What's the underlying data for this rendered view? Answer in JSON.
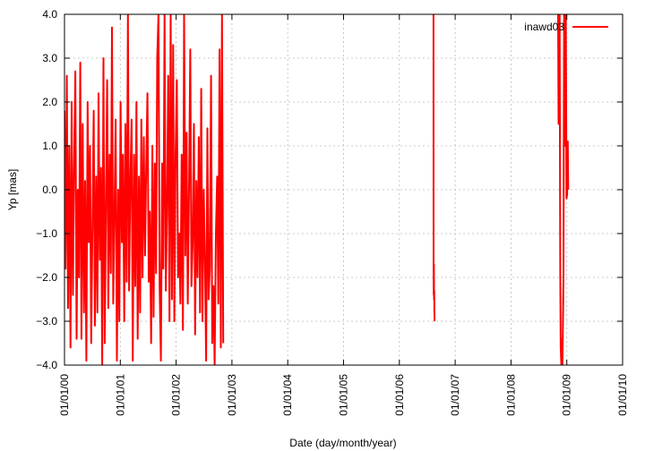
{
  "chart_data": {
    "type": "line",
    "xlabel": "Date (day/month/year)",
    "ylabel": "Yp [mas]",
    "xlim": [
      "2000-01-01",
      "2010-01-01"
    ],
    "ylim": [
      -4.0,
      4.0
    ],
    "xticks": [
      "01/01/00",
      "01/01/01",
      "01/01/02",
      "01/01/03",
      "01/01/04",
      "01/01/05",
      "01/01/06",
      "01/01/07",
      "01/01/08",
      "01/01/09",
      "01/01/10"
    ],
    "yticks": [
      "-4.0",
      "-3.0",
      "-2.0",
      "-1.0",
      "0.0",
      "1.0",
      "2.0",
      "3.0",
      "4.0"
    ],
    "grid": true,
    "legend_position": "top-right",
    "series": [
      {
        "name": "inawd03",
        "color": "#ff0000",
        "segments": [
          {
            "x": [
              "2000-01-01",
              "2000-01-08",
              "2000-01-16",
              "2000-01-24",
              "2000-02-01",
              "2000-02-09",
              "2000-02-17",
              "2000-02-25",
              "2000-03-04",
              "2000-03-12",
              "2000-03-20",
              "2000-03-28",
              "2000-04-05",
              "2000-04-13",
              "2000-04-21",
              "2000-04-29",
              "2000-05-07",
              "2000-05-15",
              "2000-05-23",
              "2000-05-31",
              "2000-06-08",
              "2000-06-16",
              "2000-06-24",
              "2000-07-02",
              "2000-07-10",
              "2000-07-18",
              "2000-07-26",
              "2000-08-03",
              "2000-08-11",
              "2000-08-19",
              "2000-08-27",
              "2000-09-04",
              "2000-09-12",
              "2000-09-20",
              "2000-09-28",
              "2000-10-06",
              "2000-10-14",
              "2000-10-22",
              "2000-10-30",
              "2000-11-07",
              "2000-11-15",
              "2000-11-23",
              "2000-12-01",
              "2000-12-09",
              "2000-12-17",
              "2000-12-25",
              "2001-01-02",
              "2001-01-10",
              "2001-01-18",
              "2001-01-26",
              "2001-02-03",
              "2001-02-11",
              "2001-02-19",
              "2001-02-27",
              "2001-03-07",
              "2001-03-15",
              "2001-03-23",
              "2001-03-31",
              "2001-04-08",
              "2001-04-16",
              "2001-04-24",
              "2001-05-02",
              "2001-05-10",
              "2001-05-18",
              "2001-05-26",
              "2001-06-03",
              "2001-06-11",
              "2001-06-19",
              "2001-06-27",
              "2001-07-05",
              "2001-07-13",
              "2001-07-21",
              "2001-07-29",
              "2001-08-06",
              "2001-08-14",
              "2001-08-22",
              "2001-08-30",
              "2001-09-07",
              "2001-09-15",
              "2001-09-23",
              "2001-10-01",
              "2001-10-09",
              "2001-10-17",
              "2001-10-25",
              "2001-11-02",
              "2001-11-10",
              "2001-11-18",
              "2001-11-26",
              "2001-12-04",
              "2001-12-12",
              "2001-12-20",
              "2001-12-28",
              "2002-01-05",
              "2002-01-13",
              "2002-01-21",
              "2002-01-29",
              "2002-02-06",
              "2002-02-14",
              "2002-02-22",
              "2002-03-02",
              "2002-03-10",
              "2002-03-18",
              "2002-03-26",
              "2002-04-03",
              "2002-04-11",
              "2002-04-19",
              "2002-04-27",
              "2002-05-05",
              "2002-05-13",
              "2002-05-21",
              "2002-05-29",
              "2002-06-06",
              "2002-06-14",
              "2002-06-22",
              "2002-06-30",
              "2002-07-08",
              "2002-07-16",
              "2002-07-24",
              "2002-08-01",
              "2002-08-09",
              "2002-08-17",
              "2002-08-25",
              "2002-09-02",
              "2002-09-10",
              "2002-09-18",
              "2002-09-26",
              "2002-10-04",
              "2002-10-12",
              "2002-10-20",
              "2002-10-28",
              "2002-11-05"
            ],
            "y": [
              1.8,
              -1.8,
              2.6,
              -2.7,
              1.0,
              -3.6,
              2.0,
              -2.4,
              0.5,
              2.7,
              -3.4,
              0.0,
              -2.0,
              2.9,
              -3.4,
              1.5,
              -2.8,
              0.2,
              -3.9,
              2.0,
              -1.2,
              1.0,
              -3.5,
              -0.8,
              1.8,
              -3.1,
              0.3,
              -2.8,
              2.2,
              -1.6,
              0.5,
              -4.0,
              3.0,
              -3.5,
              -0.5,
              2.5,
              -2.7,
              0.8,
              -1.9,
              3.7,
              -2.6,
              -0.5,
              1.6,
              -3.9,
              0.0,
              -3.0,
              2.0,
              -1.2,
              0.8,
              -3.0,
              1.5,
              -2.1,
              4.0,
              -2.3,
              0.2,
              1.6,
              -3.9,
              0.8,
              -2.2,
              2.0,
              -3.4,
              0.3,
              -2.8,
              1.6,
              -2.0,
              1.2,
              -1.5,
              0.5,
              2.2,
              -2.1,
              -0.5,
              -3.5,
              1.0,
              -2.9,
              0.6,
              -1.9,
              3.0,
              4.0,
              -2.2,
              -3.9,
              0.6,
              -1.8,
              4.0,
              -2.3,
              -0.5,
              2.6,
              -3.0,
              4.0,
              -2.5,
              3.3,
              -3.0,
              0.8,
              2.5,
              -2.0,
              -1.0,
              -2.6,
              0.8,
              -3.2,
              4.0,
              -1.5,
              1.3,
              -2.6,
              0.0,
              3.2,
              -2.2,
              -1.2,
              1.5,
              -3.3,
              0.2,
              -2.0,
              1.2,
              -2.8,
              2.3,
              -3.0,
              0.0,
              -1.5,
              -3.9,
              1.4,
              -2.5,
              -1.8,
              2.6,
              -3.5,
              -2.2,
              -4.0,
              -1.0,
              0.3,
              -2.6,
              3.2,
              -3.6,
              4.0,
              -3.5
            ]
          },
          {
            "x": [
              "2006-08-12",
              "2006-08-13",
              "2006-08-14",
              "2006-08-15",
              "2006-08-16",
              "2006-08-17",
              "2006-08-18",
              "2006-08-19"
            ],
            "y": [
              4.0,
              -2.0,
              -2.4,
              -1.7,
              -2.5,
              -2.3,
              -2.8,
              -3.0
            ]
          },
          {
            "x": [
              "2008-11-05",
              "2008-11-08",
              "2008-11-12",
              "2008-11-15",
              "2008-11-19",
              "2008-11-22",
              "2008-11-26",
              "2008-11-29",
              "2008-12-03",
              "2008-12-06",
              "2008-12-10",
              "2008-12-14",
              "2008-12-18",
              "2008-12-21",
              "2008-12-25",
              "2008-12-30",
              "2009-01-03",
              "2009-01-07",
              "2009-01-10"
            ],
            "y": [
              4.0,
              1.5,
              2.8,
              4.0,
              -1.8,
              -3.6,
              -4.0,
              -3.4,
              -4.0,
              -3.2,
              -2.0,
              4.0,
              2.2,
              1.0,
              4.0,
              -0.2,
              -0.1,
              1.1,
              0.0
            ]
          }
        ]
      }
    ]
  }
}
